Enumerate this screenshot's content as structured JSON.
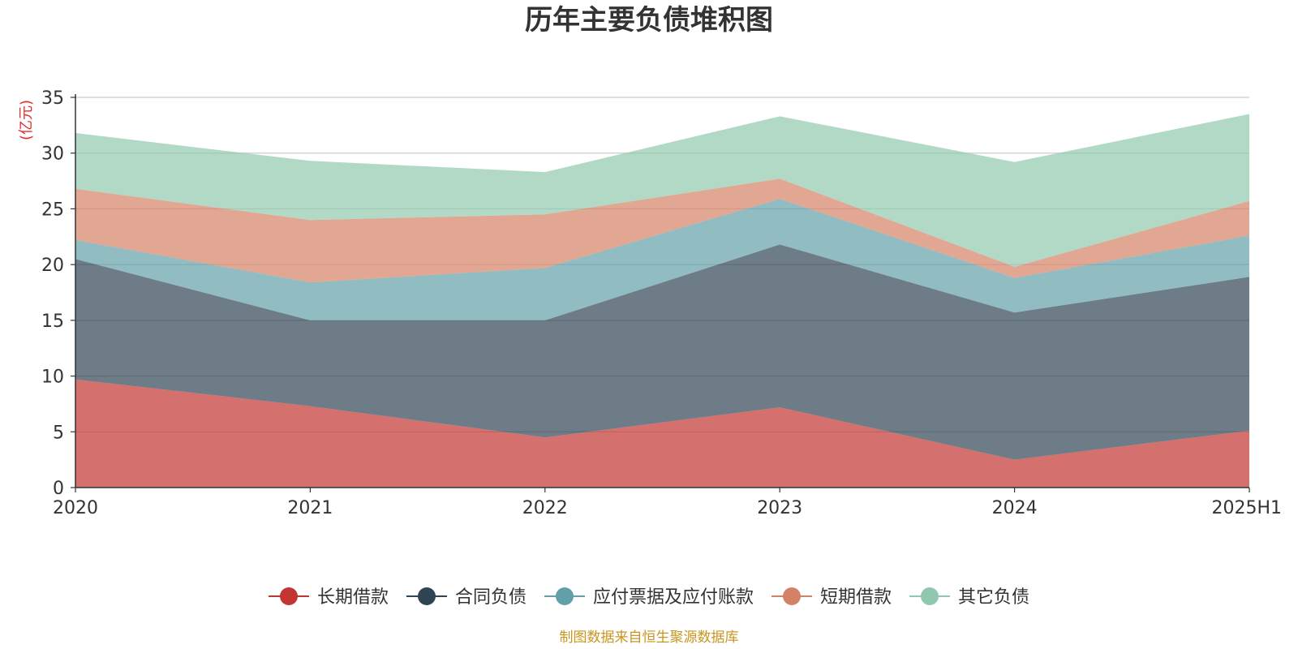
{
  "chart_data": {
    "type": "area",
    "stacked": true,
    "title": "历年主要负债堆积图",
    "unit_label": "(亿元)",
    "categories": [
      "2020",
      "2021",
      "2022",
      "2023",
      "2024",
      "2025H1"
    ],
    "ylim": [
      0,
      35
    ],
    "yticks": [
      "0",
      "5",
      "10",
      "15",
      "20",
      "25",
      "30",
      "35"
    ],
    "grid": true,
    "legend_position": "bottom",
    "series": [
      {
        "name": "长期借款",
        "color": "#c23531",
        "values": [
          9.7,
          7.3,
          4.5,
          7.2,
          2.5,
          5.1
        ]
      },
      {
        "name": "合同负债",
        "color": "#2f4554",
        "values": [
          10.8,
          7.7,
          10.5,
          14.6,
          13.2,
          13.8
        ]
      },
      {
        "name": "应付票据及应付账款",
        "color": "#61a0a8",
        "values": [
          1.7,
          3.4,
          4.7,
          4.1,
          3.1,
          3.7
        ]
      },
      {
        "name": "短期借款",
        "color": "#d48265",
        "values": [
          4.6,
          5.6,
          4.8,
          1.8,
          1.0,
          3.1
        ]
      },
      {
        "name": "其它负债",
        "color": "#91c7ae",
        "values": [
          5.0,
          5.3,
          3.8,
          5.6,
          9.4,
          7.8
        ]
      }
    ],
    "source": "制图数据来自恒生聚源数据库"
  }
}
